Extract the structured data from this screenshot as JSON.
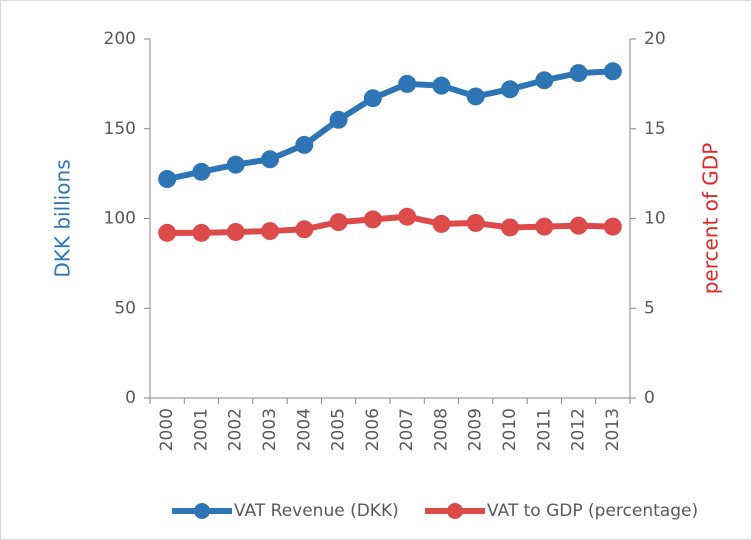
{
  "chart_data": {
    "type": "line",
    "categories": [
      "2000",
      "2001",
      "2002",
      "2003",
      "2004",
      "2005",
      "2006",
      "2007",
      "2008",
      "2009",
      "2010",
      "2011",
      "2012",
      "2013"
    ],
    "ylabel": "DKK billions",
    "y2label": "percent of GDP",
    "ylim": [
      0,
      200
    ],
    "yticks": [
      0,
      50,
      100,
      150,
      200
    ],
    "y2lim": [
      0,
      20
    ],
    "y2ticks": [
      0,
      5,
      10,
      15,
      20
    ],
    "legend": "bottom",
    "series": [
      {
        "name": "VAT Revenue (DKK)",
        "color": "#2e75b6",
        "values": [
          122,
          126,
          130,
          133,
          141,
          155,
          167,
          175,
          174,
          168,
          172,
          177,
          181,
          182
        ]
      },
      {
        "name": "VAT to GDP (percentage)",
        "color": "#dc4a4a",
        "axis": "y2",
        "values": [
          9.2,
          9.2,
          9.25,
          9.3,
          9.4,
          9.8,
          9.95,
          10.1,
          9.7,
          9.75,
          9.5,
          9.55,
          9.6,
          9.55
        ]
      }
    ]
  }
}
